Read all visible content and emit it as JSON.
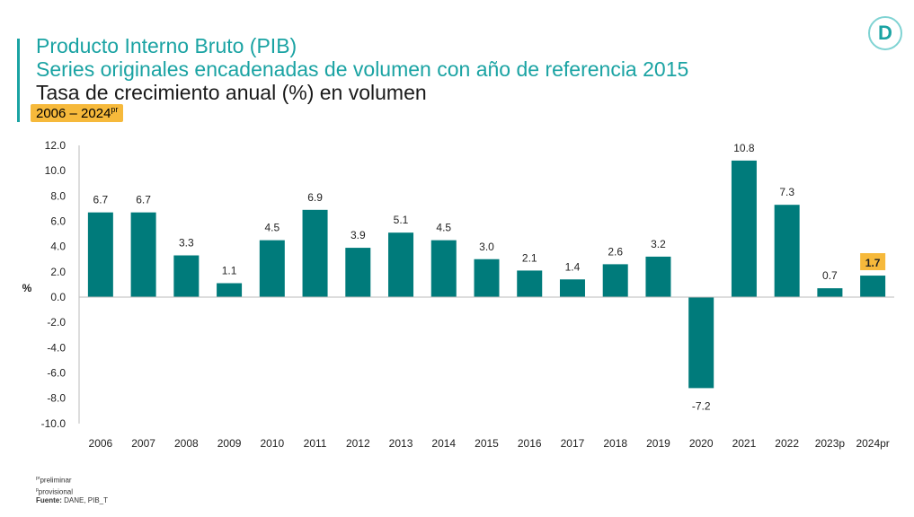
{
  "header": {
    "title1": "Producto Interno Bruto (PIB)",
    "title2": "Series originales encadenadas de volumen con año de referencia 2015",
    "title3": "Tasa de crecimiento anual (%) en volumen",
    "period": "2006 – 2024",
    "period_sup": "pr",
    "logo": "D"
  },
  "notes": {
    "n1_sup": "pr",
    "n1": "preliminar",
    "n2_sup": "p",
    "n2": "provisional",
    "source_label": "Fuente:",
    "source": " DANE, PIB_T"
  },
  "chart_data": {
    "type": "bar",
    "ylabel": "%",
    "ylim": [
      -10,
      12
    ],
    "yticks": [
      "12.0",
      "10.0",
      "8.0",
      "6.0",
      "4.0",
      "2.0",
      "0.0",
      "-2.0",
      "-4.0",
      "-6.0",
      "-8.0",
      "-10.0"
    ],
    "categories": [
      "2006",
      "2007",
      "2008",
      "2009",
      "2010",
      "2011",
      "2012",
      "2013",
      "2014",
      "2015",
      "2016",
      "2017",
      "2018",
      "2019",
      "2020",
      "2021",
      "2022",
      "2023p",
      "2024pr"
    ],
    "values": [
      6.7,
      6.7,
      3.3,
      1.1,
      4.5,
      6.9,
      3.9,
      5.1,
      4.5,
      3.0,
      2.1,
      1.4,
      2.6,
      3.2,
      -7.2,
      10.8,
      7.3,
      0.7,
      1.7
    ],
    "highlight_index": 18,
    "bar_color": "#007b7b",
    "highlight_color": "#f6b93b"
  }
}
